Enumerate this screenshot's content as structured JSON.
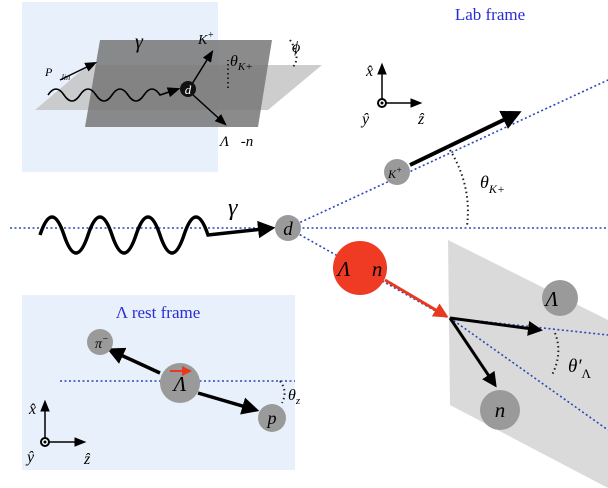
{
  "inset": {
    "p_lin": {
      "base": "P⃗",
      "sub": "lin"
    },
    "gamma": "γ⃗",
    "kaon": {
      "base": "K",
      "sup": "+"
    },
    "theta": {
      "base": "θ",
      "sub": "K+"
    },
    "phi": "ϕ",
    "d": "d",
    "lambda_n": "Λ⃗-n"
  },
  "lab": {
    "title": "Lab frame",
    "axes": {
      "x": "x̂",
      "y": "ŷ",
      "z": "ẑ"
    },
    "gamma": "γ⃗",
    "d": "d",
    "kaon": {
      "base": "K",
      "sup": "+"
    },
    "theta": {
      "base": "θ",
      "sub": "K+"
    },
    "lambda_n": "Λ⃗ n",
    "lambda": "Λ⃗",
    "n": "n",
    "theta_lambda": {
      "base": "θ′",
      "sub": "Λ"
    }
  },
  "rest": {
    "title": "Λ rest frame",
    "pion": {
      "base": "π",
      "sup": "−"
    },
    "lambda": "Λ",
    "proton": "p",
    "theta": {
      "base": "θ",
      "sub": "z"
    },
    "axes": {
      "x": "x̂",
      "y": "ŷ",
      "z": "ẑ"
    }
  }
}
